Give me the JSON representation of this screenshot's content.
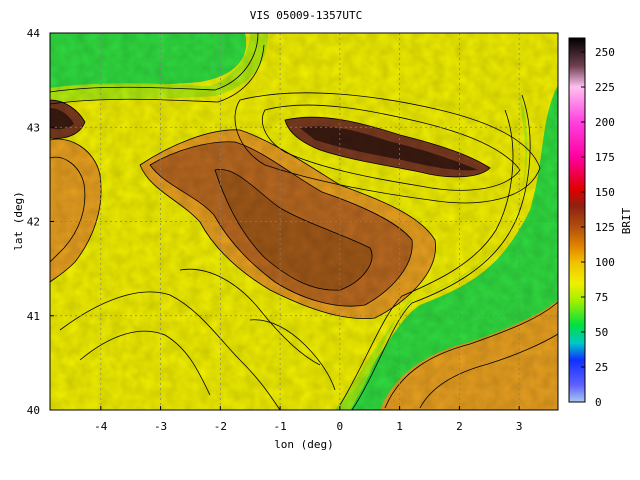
{
  "title": "VIS 05009-1357UTC",
  "x_axis": {
    "label": "lon (deg)",
    "range": [
      -4.85,
      3.65
    ],
    "ticks": [
      -4,
      -3,
      -2,
      -1,
      0,
      1,
      2,
      3
    ],
    "tick_labels": [
      "-4",
      "-3",
      "-2",
      "-1",
      "0",
      "1",
      "2",
      "3"
    ]
  },
  "y_axis": {
    "label": "lat (deg)",
    "range": [
      40,
      44
    ],
    "ticks": [
      40,
      41,
      42,
      43,
      44
    ],
    "tick_labels": [
      "40",
      "41",
      "42",
      "43",
      "44"
    ]
  },
  "colorbar": {
    "label": "BRIT",
    "range": [
      0,
      260
    ],
    "ticks": [
      0,
      25,
      50,
      75,
      100,
      125,
      150,
      175,
      200,
      225,
      250
    ],
    "tick_labels": [
      "0",
      "25",
      "50",
      "75",
      "100",
      "125",
      "150",
      "175",
      "200",
      "225",
      "250"
    ],
    "stops": [
      {
        "v": 0,
        "color": "#a8c8f0"
      },
      {
        "v": 12,
        "color": "#6060ff"
      },
      {
        "v": 30,
        "color": "#1030ff"
      },
      {
        "v": 42,
        "color": "#00c8c8"
      },
      {
        "v": 55,
        "color": "#00e040"
      },
      {
        "v": 72,
        "color": "#a0f000"
      },
      {
        "v": 85,
        "color": "#f0f000"
      },
      {
        "v": 100,
        "color": "#f0c000"
      },
      {
        "v": 112,
        "color": "#e08000"
      },
      {
        "v": 125,
        "color": "#b05010"
      },
      {
        "v": 140,
        "color": "#902010"
      },
      {
        "v": 152,
        "color": "#e00000"
      },
      {
        "v": 175,
        "color": "#ff00a0"
      },
      {
        "v": 200,
        "color": "#ff40e0"
      },
      {
        "v": 225,
        "color": "#ffc0f0"
      },
      {
        "v": 240,
        "color": "#704050"
      },
      {
        "v": 260,
        "color": "#000000"
      }
    ]
  },
  "grid": true,
  "field_colors": {
    "sea": "#30dc40",
    "coastal": "#a8ec10",
    "plain": "#f2f000",
    "highland": "#e8a020",
    "basin": "#b86820",
    "basin_core": "#a05818",
    "mountain": "#7a3a20",
    "peak": "#3a1a10"
  }
}
